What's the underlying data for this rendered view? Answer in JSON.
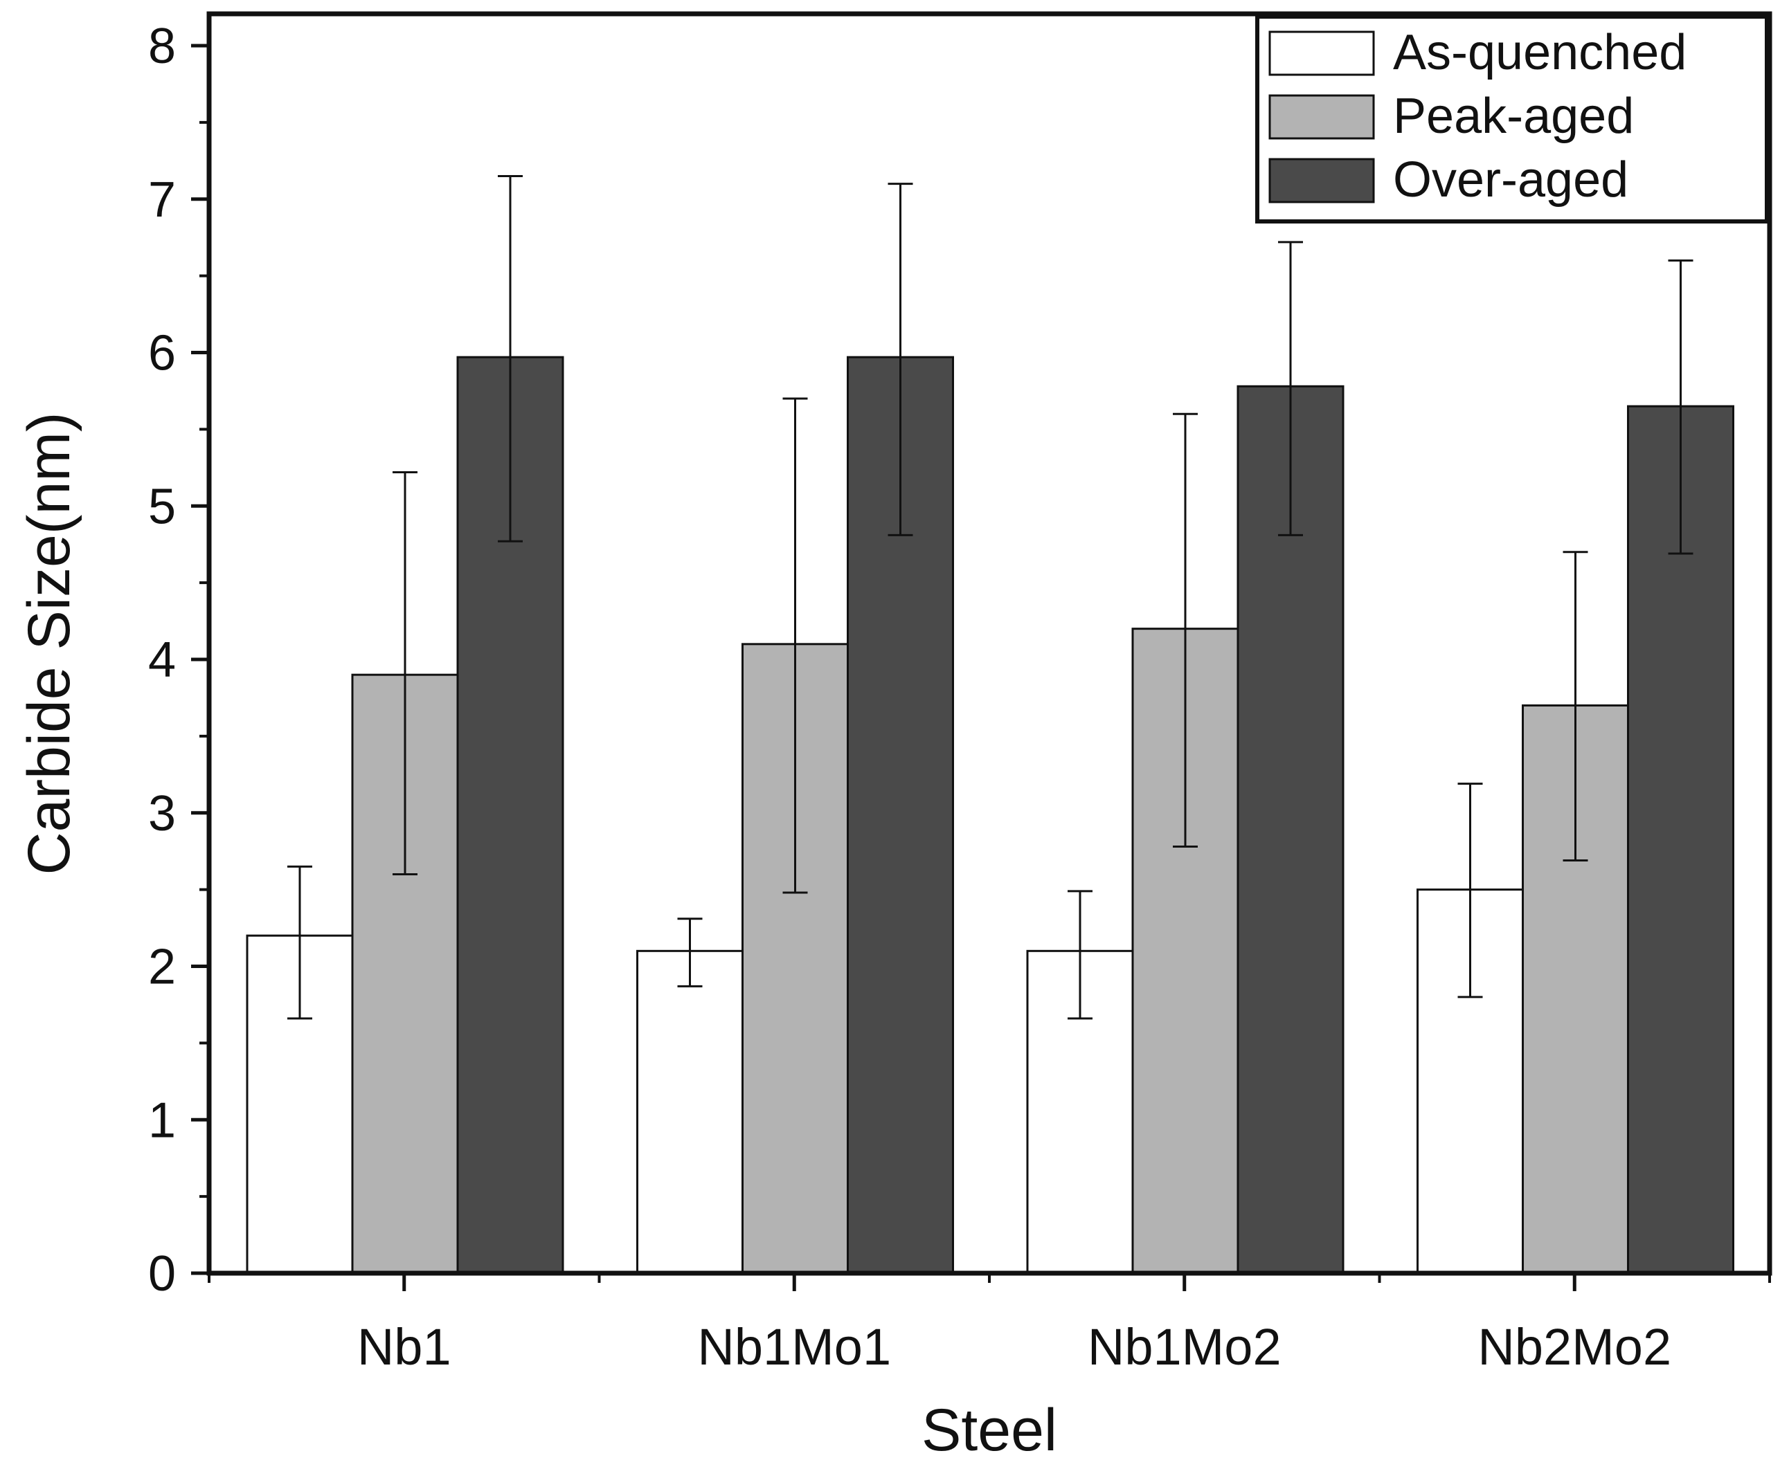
{
  "chart_data": {
    "type": "bar",
    "title": "",
    "xlabel": "Steel",
    "ylabel": "Carbide Size(nm)",
    "ylim": [
      0,
      8
    ],
    "yticks": [
      "0",
      "1",
      "2",
      "3",
      "4",
      "5",
      "6",
      "7",
      "8"
    ],
    "categories": [
      "Nb1",
      "Nb1Mo1",
      "Nb1Mo2",
      "Nb2Mo2"
    ],
    "series": [
      {
        "name": "As-quenched",
        "color": "#ffffff",
        "values": [
          2.2,
          2.1,
          2.1,
          2.5
        ],
        "error_low": [
          1.66,
          1.87,
          1.66,
          1.8
        ],
        "error_high": [
          2.65,
          2.31,
          2.49,
          3.19
        ]
      },
      {
        "name": "Peak-aged",
        "color": "#b3b3b3",
        "values": [
          3.9,
          4.1,
          4.2,
          3.7
        ],
        "error_low": [
          2.6,
          2.48,
          2.78,
          2.69
        ],
        "error_high": [
          5.22,
          5.7,
          5.6,
          4.7
        ]
      },
      {
        "name": "Over-aged",
        "color": "#4a4a4a",
        "values": [
          5.97,
          5.97,
          5.78,
          5.65
        ],
        "error_low": [
          4.77,
          4.81,
          4.81,
          4.69
        ],
        "error_high": [
          7.15,
          7.1,
          6.72,
          6.6
        ]
      }
    ],
    "legend_position": "top-right",
    "grid": false
  }
}
